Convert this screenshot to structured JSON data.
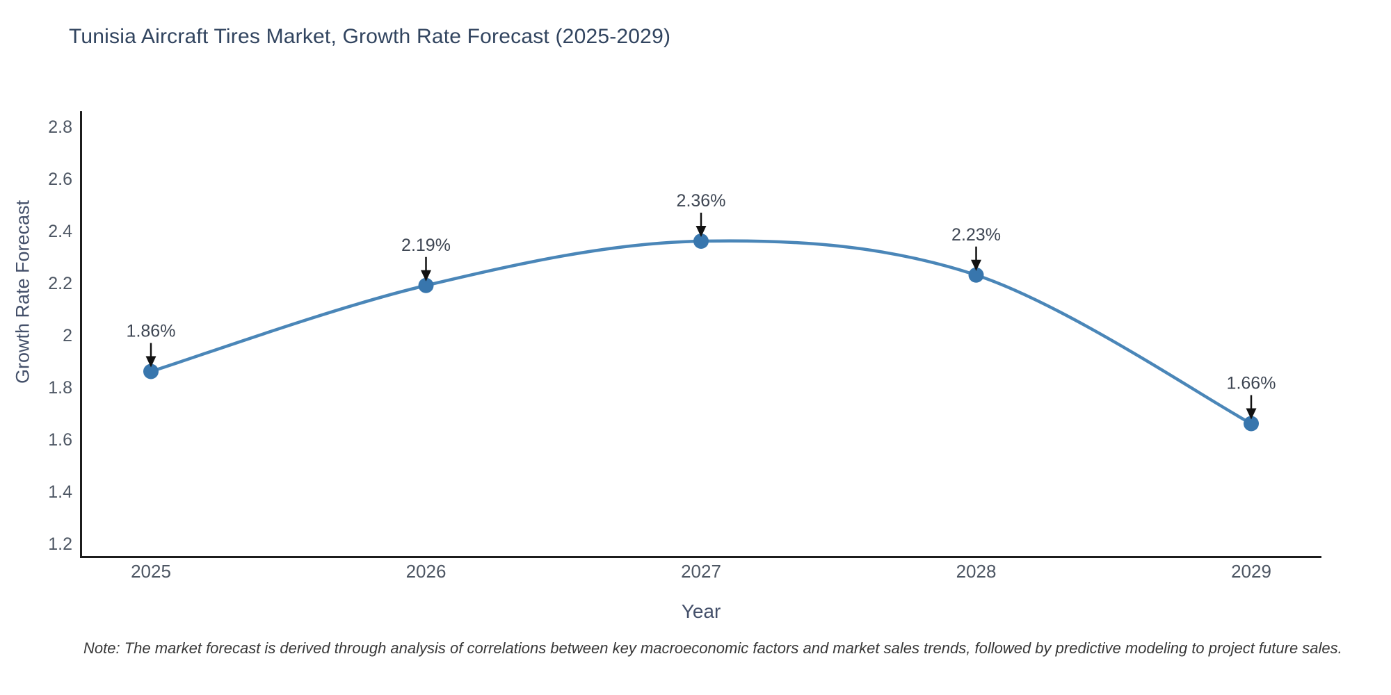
{
  "chart_data": {
    "type": "line",
    "title": "Tunisia Aircraft Tires Market, Growth Rate Forecast (2025-2029)",
    "xlabel": "Year",
    "ylabel": "Growth Rate Forecast",
    "note": "Note: The market forecast is derived through analysis of correlations between key macroeconomic factors and market sales trends, followed by predictive modeling to project future sales.",
    "categories": [
      "2025",
      "2026",
      "2027",
      "2028",
      "2029"
    ],
    "values": [
      1.86,
      2.19,
      2.36,
      2.23,
      1.66
    ],
    "point_labels": [
      "1.86%",
      "2.19%",
      "2.36%",
      "2.23%",
      "1.66%"
    ],
    "yticks": [
      2.8,
      2.6,
      2.4,
      2.2,
      2,
      1.8,
      1.6,
      1.4,
      1.2
    ],
    "ytick_labels": [
      "2.8",
      "2.6",
      "2.4",
      "2.2",
      "2",
      "1.8",
      "1.6",
      "1.4",
      "1.2"
    ],
    "ylim": [
      1.15,
      2.86
    ],
    "line_shape": "spline",
    "grid": false,
    "legend": false,
    "annotations_arrow": "down-arrow-to-point",
    "colors": {
      "line": "#4a86b8",
      "marker": "#3876ad",
      "arrow": "#111111",
      "axis": "#1c1c1c",
      "tick_text": "#4d5663",
      "annotation_text": "#3e4653",
      "title_text": "#31445f",
      "axis_title_text": "#44506a",
      "background": "#ffffff"
    }
  }
}
